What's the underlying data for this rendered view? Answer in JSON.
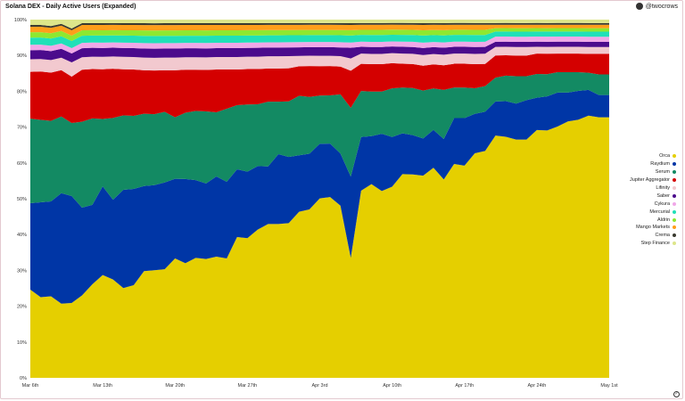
{
  "header": {
    "title": "Solana DEX - Daily Active Users (Expanded)",
    "author": "@twocrows"
  },
  "colors": {
    "background": "#ffffff"
  },
  "chart_data": {
    "type": "area",
    "stacked": true,
    "normalized": true,
    "title": "Solana DEX - Daily Active Users (Expanded)",
    "xlabel": "",
    "ylabel": "",
    "ylim": [
      0,
      100
    ],
    "y_unit": "%",
    "y_ticks": [
      "0%",
      "10%",
      "20%",
      "30%",
      "40%",
      "50%",
      "60%",
      "70%",
      "80%",
      "90%",
      "100%"
    ],
    "x_ticks": [
      "Mar 6th",
      "Mar 13th",
      "Mar 20th",
      "Mar 27th",
      "Apr 3rd",
      "Apr 10th",
      "Apr 17th",
      "Apr 24th",
      "May 1st"
    ],
    "x_tick_index": [
      0,
      7,
      14,
      21,
      28,
      35,
      42,
      49,
      56
    ],
    "legend_position": "right",
    "grid": false,
    "series": [
      {
        "name": "Orca",
        "color": "#e5cf00",
        "values": [
          24.5,
          22.5,
          22.8,
          20.8,
          21,
          23,
          26.5,
          29,
          28,
          25.3,
          26,
          29.5,
          29.6,
          30,
          33,
          32,
          33.5,
          33,
          34,
          33.5,
          39.5,
          39.5,
          42,
          44,
          44,
          44.5,
          48,
          49,
          52,
          52.5,
          49.5,
          34,
          55,
          56.5,
          54.5,
          57,
          60,
          59.5,
          57,
          61,
          56.5,
          63,
          62.5,
          65.5,
          66.5,
          71,
          71,
          69.5,
          69.5,
          73,
          72.5,
          74,
          75.5,
          76,
          76.5,
          76,
          76
        ]
      },
      {
        "name": "Raydium",
        "color": "#0036a6",
        "values": [
          24,
          26.5,
          26.5,
          31,
          30,
          24.5,
          22.5,
          25,
          22.7,
          27.7,
          27,
          23.5,
          23.4,
          24,
          22,
          23.5,
          21.7,
          21,
          22.5,
          21.5,
          19,
          18.8,
          18,
          16.5,
          20,
          19,
          16.3,
          16.2,
          15.8,
          15.5,
          15,
          23,
          15.8,
          14,
          16.7,
          14.8,
          12,
          11.5,
          10.5,
          11,
          11.5,
          13.5,
          14,
          11.5,
          11.5,
          10,
          10.5,
          10.5,
          11.5,
          9.5,
          10,
          10,
          8.5,
          8.5,
          7.5,
          6.5,
          6.5
        ]
      },
      {
        "name": "Serum",
        "color": "#138a63",
        "values": [
          23.5,
          23,
          22.5,
          21.5,
          20.5,
          24,
          24.5,
          19,
          23.3,
          21,
          20.5,
          20,
          19.5,
          19.5,
          17,
          18.5,
          19.3,
          20,
          18,
          20.5,
          18,
          19,
          17.5,
          18.5,
          15,
          16,
          17.2,
          16.5,
          14,
          14,
          17,
          19.5,
          13.5,
          13,
          12.3,
          14.5,
          13.5,
          13.8,
          13.5,
          12,
          14,
          9,
          9,
          7.5,
          7.5,
          7,
          7.5,
          8,
          7,
          7,
          6.5,
          6,
          6,
          5.5,
          5,
          6,
          6
        ]
      },
      {
        "name": "Jupiter Aggregator",
        "color": "#d40000",
        "values": [
          13,
          13.5,
          13.5,
          13,
          13,
          14.5,
          14,
          14,
          14,
          13,
          13,
          12,
          12,
          11.5,
          13,
          12,
          11.5,
          11.5,
          12,
          11,
          10,
          10,
          10,
          9.5,
          9.5,
          9.5,
          8.5,
          9,
          8.5,
          8.5,
          8,
          10.5,
          8,
          8,
          8,
          7.5,
          7,
          7,
          7,
          7,
          7,
          7,
          7,
          7,
          6.5,
          6.5,
          6,
          6,
          6,
          6,
          6,
          5.5,
          5.5,
          5.5,
          5.5,
          6,
          6
        ]
      },
      {
        "name": "Lifinity",
        "color": "#f2c9cf",
        "values": [
          3.5,
          3.5,
          3.5,
          3.5,
          4,
          3.5,
          3.5,
          3.5,
          3.5,
          3.5,
          3.5,
          3.5,
          3.5,
          3.5,
          3.5,
          3.5,
          3.5,
          3.5,
          3.5,
          3.5,
          3.5,
          3.5,
          3.5,
          3.5,
          3.5,
          3.5,
          3,
          3,
          3,
          3,
          3,
          3.5,
          3,
          3,
          3,
          3,
          3,
          3,
          3,
          3,
          3,
          3,
          3,
          3,
          3,
          2.5,
          2.5,
          2.5,
          2.5,
          2,
          2,
          2,
          2,
          2,
          2,
          2,
          2
        ]
      },
      {
        "name": "Saber",
        "color": "#4b0b8c",
        "values": [
          2.5,
          2.5,
          2.5,
          2.5,
          2.5,
          2.5,
          2.5,
          2.5,
          2.5,
          2.5,
          2.5,
          2.5,
          2.5,
          2.5,
          2.5,
          2.5,
          2.5,
          2.5,
          2.5,
          2.5,
          2.5,
          2.5,
          2.5,
          2.5,
          2.5,
          2.5,
          2.5,
          2.5,
          2.5,
          2.5,
          2.5,
          3,
          2,
          2,
          2,
          2,
          2,
          2,
          2,
          2,
          2,
          2,
          2,
          2,
          2,
          1.5,
          1.5,
          1.5,
          1.5,
          1.5,
          1.5,
          1.5,
          1.5,
          1.5,
          1.5,
          1.5,
          1.5
        ]
      },
      {
        "name": "Cykura",
        "color": "#f0a8e8",
        "values": [
          1.5,
          1.5,
          1.5,
          1.5,
          1.5,
          1.5,
          1.5,
          1.5,
          1.5,
          1.5,
          1.5,
          1.5,
          1.5,
          1.5,
          1.5,
          1.5,
          1.5,
          1.5,
          1.5,
          1.5,
          1.5,
          1.5,
          1.5,
          1.5,
          1.5,
          1.5,
          1.5,
          1.5,
          1.5,
          1.5,
          1.5,
          1.5,
          1.5,
          1.5,
          1.5,
          1.5,
          1.5,
          1.5,
          1.5,
          1.5,
          1.5,
          1.5,
          1.5,
          1.5,
          1.5,
          1.5,
          1.5,
          1.5,
          1.5,
          1.5,
          1.5,
          1.5,
          1.5,
          1.5,
          1.5,
          1.5,
          1.5
        ]
      },
      {
        "name": "Mercurial",
        "color": "#20e0b8",
        "values": [
          2,
          2,
          2,
          2,
          2,
          2,
          2,
          2,
          2,
          2,
          2,
          2,
          2,
          2,
          2,
          2,
          2,
          2,
          2,
          2,
          2,
          2,
          2,
          2,
          2,
          2,
          2,
          2,
          2,
          2,
          2,
          2,
          2,
          2,
          2,
          2,
          2,
          2,
          2,
          2,
          2,
          2,
          2,
          2,
          2,
          1.5,
          1.5,
          1.5,
          1.5,
          1.5,
          1.5,
          1.5,
          1.5,
          1.5,
          1.5,
          1.5,
          1.5
        ]
      },
      {
        "name": "Aldrin",
        "color": "#8ee830",
        "values": [
          1.5,
          1.5,
          1.5,
          1.5,
          1.5,
          1.5,
          1.5,
          1.5,
          1.5,
          1.5,
          1.5,
          1.5,
          1.5,
          1.5,
          1.5,
          1.5,
          1.5,
          1.5,
          1.5,
          1.5,
          1.5,
          1.5,
          1.5,
          1.5,
          1.5,
          1.5,
          1.5,
          1.5,
          1.5,
          1.5,
          1.5,
          1.5,
          1.5,
          1.5,
          1.5,
          1.5,
          1.5,
          1.5,
          1.5,
          1.5,
          1.5,
          1.5,
          1.5,
          1.5,
          1.5,
          1,
          1,
          1,
          1,
          1,
          1,
          1,
          1,
          1,
          1,
          1,
          1
        ]
      },
      {
        "name": "Mango Markets",
        "color": "#ff9e1a",
        "values": [
          1.5,
          1.5,
          1.5,
          1.5,
          1.5,
          1.5,
          1.5,
          1.5,
          1.5,
          1.5,
          1.5,
          1.5,
          1.5,
          1.5,
          1.5,
          1.5,
          1.5,
          1.5,
          1.5,
          1.5,
          1.5,
          1.5,
          1.5,
          1.5,
          1.5,
          1.5,
          1.5,
          1.5,
          1.5,
          1.5,
          1.5,
          1.5,
          1.5,
          1.5,
          1.5,
          1.5,
          1.5,
          1.5,
          1.5,
          1.5,
          1.5,
          1.5,
          1.5,
          1.5,
          1.5,
          1,
          1,
          1,
          1,
          1,
          1,
          1,
          1,
          1,
          1,
          1,
          1
        ]
      },
      {
        "name": "Crema",
        "color": "#3a3a30",
        "values": [
          0.5,
          0.5,
          0.5,
          0.5,
          0.5,
          0.5,
          0.5,
          0.5,
          0.5,
          0.5,
          0.5,
          0.5,
          0.5,
          0.5,
          0.5,
          0.5,
          0.5,
          0.5,
          0.5,
          0.5,
          0.5,
          0.5,
          0.5,
          0.5,
          0.5,
          0.5,
          0.5,
          0.5,
          0.5,
          0.5,
          0.5,
          0.5,
          0.5,
          0.5,
          0.5,
          0.5,
          0.5,
          0.5,
          0.5,
          0.5,
          0.5,
          0.5,
          0.5,
          0.5,
          0.5,
          0.5,
          0.5,
          0.5,
          0.5,
          0.5,
          0.5,
          0.5,
          0.5,
          0.5,
          0.5,
          0.5,
          0.5
        ]
      },
      {
        "name": "Step Finance",
        "color": "#dde68a",
        "values": [
          1.5,
          1.5,
          1.8,
          1.2,
          2.5,
          1,
          1,
          1,
          1,
          1,
          1,
          1,
          1,
          1,
          1,
          1,
          1,
          1,
          1,
          1,
          1,
          1,
          1,
          1,
          1,
          1,
          1,
          1,
          1,
          1,
          1,
          1,
          1,
          1,
          1,
          1,
          1,
          1,
          1,
          1,
          1,
          1,
          1,
          1,
          1,
          1,
          1,
          1,
          1,
          1,
          1,
          1,
          1,
          1,
          1,
          1,
          1
        ]
      }
    ]
  }
}
